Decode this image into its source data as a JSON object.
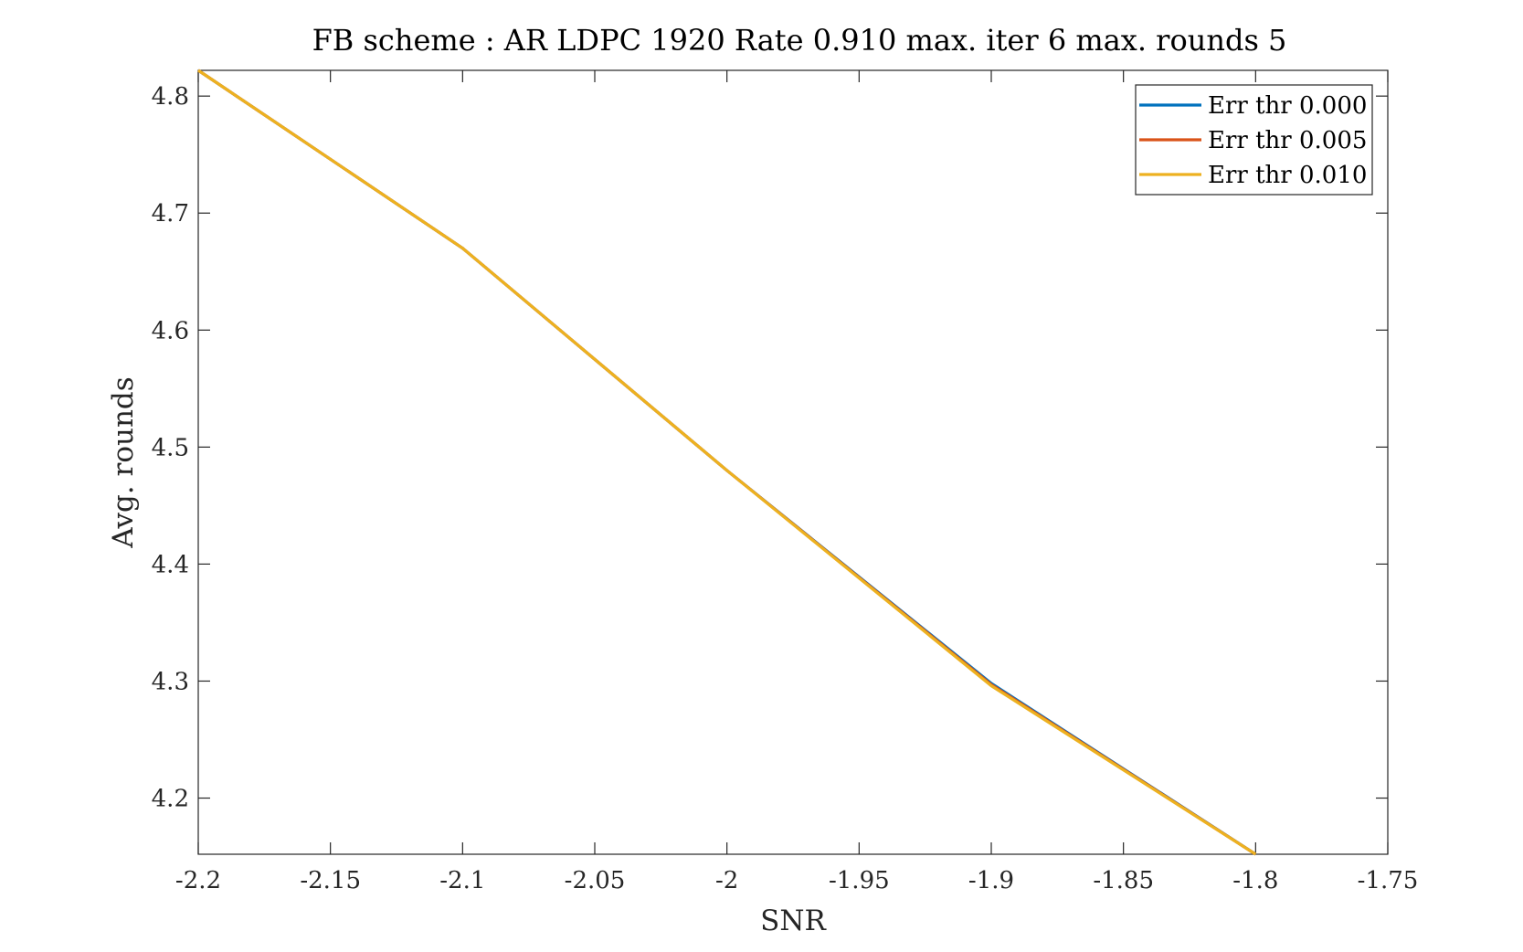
{
  "chart_data": {
    "type": "line",
    "title": "FB scheme : AR LDPC 1920 Rate 0.910 max. iter 6 max. rounds 5",
    "xlabel": "SNR",
    "ylabel": "Avg. rounds",
    "xlim": [
      -2.2,
      -1.75
    ],
    "ylim": [
      4.152,
      4.822
    ],
    "xticks": [
      -2.2,
      -2.15,
      -2.1,
      -2.05,
      -2,
      -1.95,
      -1.9,
      -1.85,
      -1.8,
      -1.75
    ],
    "xtick_labels": [
      "-2.2",
      "-2.15",
      "-2.1",
      "-2.05",
      "-2",
      "-1.95",
      "-1.9",
      "-1.85",
      "-1.8",
      "-1.75"
    ],
    "yticks": [
      4.2,
      4.3,
      4.4,
      4.5,
      4.6,
      4.7,
      4.8
    ],
    "ytick_labels": [
      "4.2",
      "4.3",
      "4.4",
      "4.5",
      "4.6",
      "4.7",
      "4.8"
    ],
    "grid": false,
    "legend_position": "top-right",
    "series": [
      {
        "name": "Err thr 0.000",
        "color": "#0072BD",
        "x": [
          -2.2,
          -2.1,
          -2.0,
          -1.9,
          -1.8
        ],
        "y": [
          4.822,
          4.67,
          4.48,
          4.298,
          4.152
        ]
      },
      {
        "name": "Err thr 0.005",
        "color": "#D95319",
        "x": [
          -2.2,
          -2.1,
          -2.0,
          -1.9,
          -1.8
        ],
        "y": [
          4.822,
          4.67,
          4.48,
          4.297,
          4.152
        ]
      },
      {
        "name": "Err thr 0.010",
        "color": "#EDB120",
        "x": [
          -2.2,
          -2.1,
          -2.0,
          -1.9,
          -1.8
        ],
        "y": [
          4.822,
          4.67,
          4.48,
          4.296,
          4.152
        ]
      }
    ]
  }
}
